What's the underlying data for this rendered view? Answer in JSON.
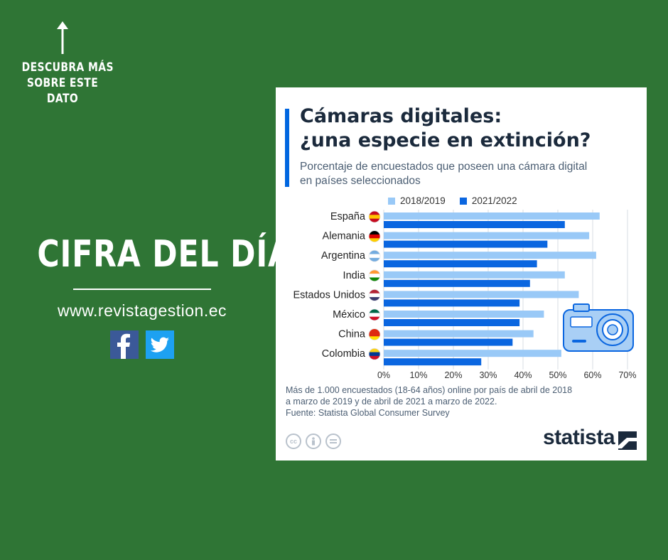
{
  "left_panel": {
    "discover_lines": [
      "DESCUBRA MÁS",
      "SOBRE ESTE",
      "DATO"
    ],
    "headline": "CIFRA DEL DÍA",
    "website": "www.revistagestion.ec",
    "social": [
      "facebook-icon",
      "twitter-icon"
    ]
  },
  "card": {
    "title_line1": "Cámaras digitales:",
    "title_line2": "¿una especie en extinción?",
    "subtitle_line1": "Porcentaje de encuestados que poseen una cámara digital",
    "subtitle_line2": "en países seleccionados",
    "notes_line1": "Más de 1.000 encuestados (18-64 años) online por país de abril de 2018",
    "notes_line2": "a marzo de 2019 y de abril de 2021 a marzo de 2022.",
    "source": "Fuente: Statista Global Consumer Survey",
    "brand": "statista",
    "license_icons": [
      "cc-icon",
      "by-icon",
      "nd-icon"
    ]
  },
  "colors": {
    "background": "#2f7535",
    "series_2018": "#99c9f7",
    "series_2021": "#0a66e0",
    "grid": "#d7dde3",
    "text_dark": "#1b2a3c"
  },
  "chart_data": {
    "type": "bar",
    "orientation": "horizontal",
    "title": "Cámaras digitales: ¿una especie en extinción?",
    "categories": [
      "España",
      "Alemania",
      "Argentina",
      "India",
      "Estados Unidos",
      "México",
      "China",
      "Colombia"
    ],
    "series": [
      {
        "name": "2018/2019",
        "values": [
          62,
          59,
          61,
          52,
          56,
          46,
          43,
          51
        ]
      },
      {
        "name": "2021/2022",
        "values": [
          52,
          47,
          44,
          42,
          39,
          39,
          37,
          28
        ]
      }
    ],
    "xlim": [
      0,
      70
    ],
    "xticks": [
      0,
      10,
      20,
      30,
      40,
      50,
      60,
      70
    ],
    "xtick_suffix": "%",
    "grid": true,
    "legend": "top"
  }
}
